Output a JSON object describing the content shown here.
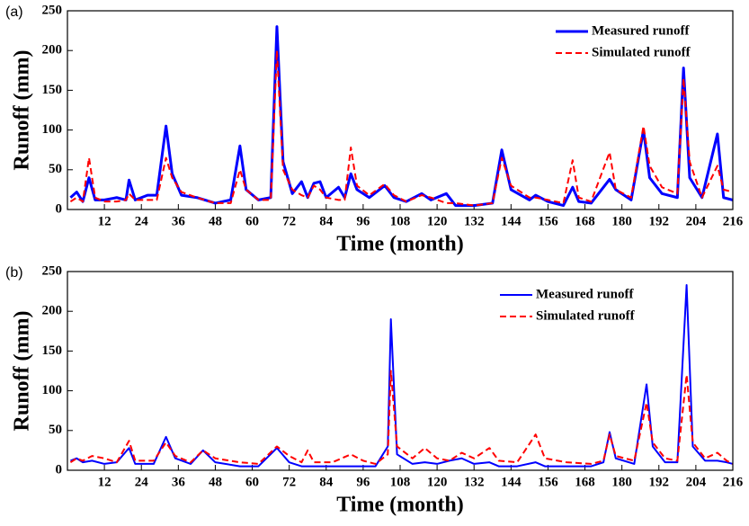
{
  "chart_data": [
    {
      "type": "line",
      "panel": "(a)",
      "y_label": "Runoff (mm)",
      "x_label": "Time (month)",
      "xlim": [
        0,
        216
      ],
      "xticks": [
        12,
        24,
        36,
        48,
        60,
        72,
        84,
        96,
        108,
        120,
        132,
        144,
        156,
        168,
        180,
        192,
        204,
        216
      ],
      "ylim": [
        0,
        250
      ],
      "yticks": [
        0,
        50,
        100,
        150,
        200,
        250
      ],
      "x": [
        1,
        3,
        5,
        7,
        9,
        12,
        16,
        19,
        20,
        22,
        26,
        29,
        32,
        34,
        37,
        42,
        48,
        53,
        56,
        58,
        62,
        66,
        68,
        70,
        73,
        76,
        78,
        80,
        82,
        84,
        88,
        90,
        92,
        94,
        98,
        103,
        106,
        110,
        115,
        118,
        123,
        126,
        132,
        138,
        141,
        144,
        150,
        152,
        156,
        161,
        164,
        166,
        170,
        176,
        178,
        183,
        187,
        189,
        193,
        198,
        200,
        202,
        206,
        211,
        213,
        216
      ],
      "series": [
        {
          "name": "Measured runoff",
          "color": "#0000ff",
          "dashed": false,
          "values": [
            15,
            22,
            10,
            40,
            12,
            12,
            15,
            12,
            37,
            12,
            18,
            18,
            105,
            45,
            18,
            15,
            8,
            12,
            80,
            25,
            12,
            15,
            230,
            60,
            20,
            35,
            15,
            33,
            35,
            15,
            28,
            15,
            45,
            25,
            15,
            30,
            15,
            10,
            20,
            12,
            20,
            5,
            5,
            8,
            75,
            25,
            12,
            18,
            10,
            5,
            28,
            10,
            8,
            38,
            25,
            12,
            100,
            40,
            20,
            15,
            178,
            40,
            15,
            95,
            15,
            12
          ]
        },
        {
          "name": "Simulated runoff",
          "color": "#ff0000",
          "dashed": true,
          "values": [
            10,
            15,
            10,
            65,
            15,
            10,
            10,
            12,
            20,
            12,
            12,
            12,
            65,
            40,
            22,
            15,
            8,
            8,
            50,
            25,
            12,
            12,
            200,
            50,
            25,
            18,
            15,
            30,
            25,
            15,
            12,
            12,
            78,
            30,
            18,
            32,
            18,
            10,
            18,
            15,
            8,
            8,
            5,
            8,
            65,
            30,
            15,
            15,
            12,
            8,
            62,
            15,
            10,
            72,
            25,
            15,
            105,
            55,
            28,
            20,
            165,
            60,
            15,
            55,
            25,
            22
          ]
        }
      ]
    },
    {
      "type": "line",
      "panel": "(b)",
      "y_label": "Runoff (mm)",
      "x_label": "Time (month)",
      "xlim": [
        0,
        216
      ],
      "xticks": [
        12,
        24,
        36,
        48,
        60,
        72,
        84,
        96,
        108,
        120,
        132,
        144,
        156,
        168,
        180,
        192,
        204,
        216
      ],
      "ylim": [
        0,
        250
      ],
      "yticks": [
        0,
        50,
        100,
        150,
        200,
        250
      ],
      "x": [
        1,
        3,
        5,
        8,
        12,
        16,
        20,
        22,
        28,
        32,
        35,
        40,
        44,
        48,
        56,
        62,
        68,
        72,
        76,
        78,
        80,
        86,
        92,
        96,
        100,
        104,
        105,
        107,
        112,
        116,
        120,
        124,
        128,
        132,
        137,
        140,
        146,
        152,
        155,
        162,
        170,
        174,
        176,
        178,
        184,
        188,
        190,
        194,
        198,
        201,
        203,
        207,
        211,
        214,
        216
      ],
      "series": [
        {
          "name": "Measured runoff",
          "color": "#0000ff",
          "dashed": false,
          "values": [
            12,
            15,
            10,
            12,
            8,
            10,
            28,
            8,
            8,
            42,
            15,
            8,
            25,
            10,
            5,
            5,
            28,
            10,
            5,
            5,
            5,
            5,
            5,
            5,
            5,
            30,
            190,
            20,
            8,
            10,
            8,
            12,
            15,
            8,
            10,
            5,
            5,
            10,
            5,
            5,
            5,
            10,
            48,
            15,
            8,
            108,
            30,
            10,
            10,
            233,
            30,
            12,
            12,
            10,
            8
          ]
        },
        {
          "name": "Simulated runoff",
          "color": "#ff0000",
          "dashed": true,
          "values": [
            10,
            15,
            12,
            18,
            15,
            10,
            37,
            12,
            12,
            35,
            18,
            10,
            25,
            15,
            10,
            8,
            30,
            18,
            10,
            25,
            10,
            10,
            20,
            12,
            8,
            20,
            125,
            30,
            15,
            28,
            15,
            12,
            22,
            15,
            28,
            12,
            10,
            45,
            15,
            10,
            8,
            12,
            45,
            18,
            12,
            85,
            35,
            15,
            12,
            120,
            35,
            15,
            22,
            12,
            8
          ]
        }
      ]
    }
  ]
}
